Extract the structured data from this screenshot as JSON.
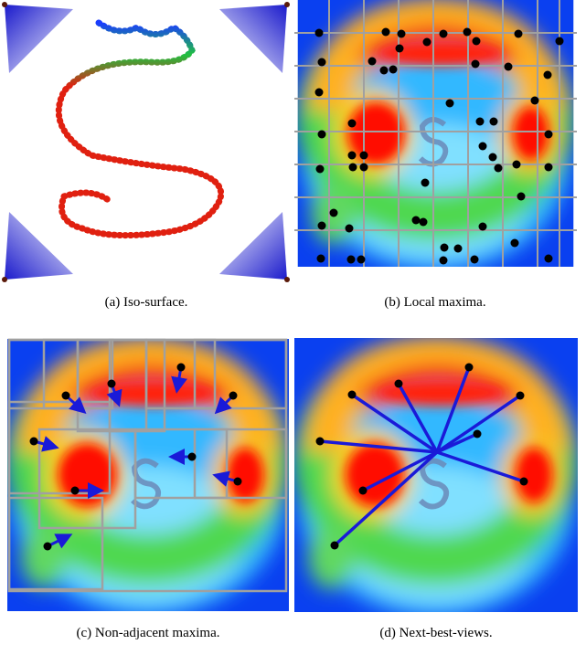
{
  "panels": [
    {
      "caption": "(a) Iso-surface."
    },
    {
      "caption": "(b) Local maxima."
    },
    {
      "caption": "(c) Non-adjacent maxima."
    },
    {
      "caption": "(d) Next-best-views."
    }
  ]
}
